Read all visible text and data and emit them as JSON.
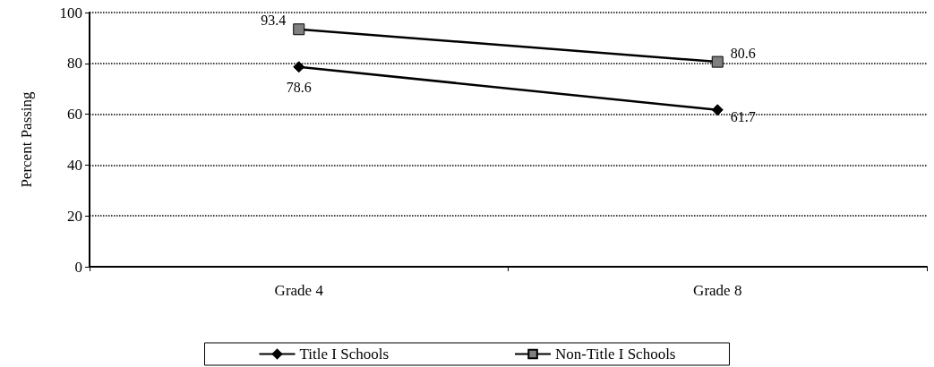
{
  "chart_data": {
    "type": "line",
    "ylabel": "Percent Passing",
    "categories": [
      "Grade 4",
      "Grade 8"
    ],
    "series": [
      {
        "name": "Title I Schools",
        "color": "#000000",
        "marker": "diamond",
        "values": [
          78.6,
          61.7
        ]
      },
      {
        "name": "Non-Title I Schools",
        "color": "#808080",
        "marker": "square",
        "values": [
          93.4,
          80.6
        ]
      }
    ],
    "ylim": [
      0,
      100
    ],
    "yticks": [
      0,
      20,
      40,
      60,
      80,
      100
    ],
    "grid": "y",
    "legend": "bottom",
    "data_labels": true
  }
}
